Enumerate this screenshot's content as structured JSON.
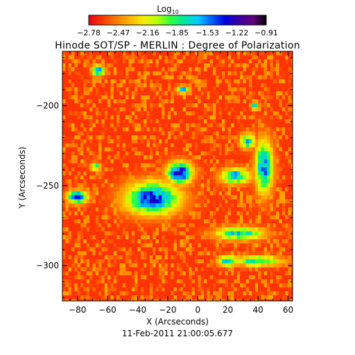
{
  "chart_data": {
    "type": "heatmap",
    "title": "Hinode SOT/SP - MERLIN : Degree of Polarization",
    "timestamp": "11-Feb-2011 21:00:05.677",
    "xlabel": "X (Arcseconds)",
    "ylabel": "Y (Arcseconds)",
    "xlim": [
      -90,
      63
    ],
    "ylim": [
      -322,
      -166
    ],
    "x_ticks": [
      -80,
      -60,
      -40,
      -20,
      0,
      20,
      40,
      60
    ],
    "x_tick_labels": [
      "−80",
      "−60",
      "−40",
      "−20",
      "0",
      "20",
      "40",
      "60"
    ],
    "y_ticks": [
      -200,
      -250,
      -300
    ],
    "y_tick_labels": [
      "−200",
      "−250",
      "−300"
    ],
    "colorbar": {
      "title_base": "Log",
      "title_sub": "10",
      "range": [
        -2.78,
        -0.91
      ],
      "tick_values": [
        -2.78,
        -2.47,
        -2.16,
        -1.85,
        -1.53,
        -1.22,
        -0.91
      ],
      "tick_labels": [
        "−2.78",
        "−2.47",
        "−2.16",
        "−1.85",
        "−1.53",
        "−1.22",
        "−0.91"
      ],
      "colors": [
        "#e8001c",
        "#ff3a00",
        "#ff7a00",
        "#ffb400",
        "#f4ee00",
        "#b8ff00",
        "#30ff40",
        "#00e6a0",
        "#00c8ff",
        "#0060ff",
        "#0000e0",
        "#3c00a0",
        "#600080",
        "#000000"
      ]
    },
    "background_value": -2.65,
    "regions": [
      {
        "x": -30,
        "y": -258,
        "rx": 22,
        "ry": 12,
        "value": -1.35
      },
      {
        "x": -12,
        "y": -242,
        "rx": 10,
        "ry": 8,
        "value": -1.2
      },
      {
        "x": -80,
        "y": -257,
        "rx": 8,
        "ry": 5,
        "value": -1.35
      },
      {
        "x": 44,
        "y": -238,
        "rx": 7,
        "ry": 20,
        "value": -1.5
      },
      {
        "x": 25,
        "y": -244,
        "rx": 12,
        "ry": 6,
        "value": -1.6
      },
      {
        "x": 28,
        "y": -280,
        "rx": 20,
        "ry": 5,
        "value": -1.7
      },
      {
        "x": 40,
        "y": -297,
        "rx": 20,
        "ry": 4,
        "value": -1.8
      },
      {
        "x": 20,
        "y": -297,
        "rx": 8,
        "ry": 4,
        "value": -1.6
      },
      {
        "x": -66,
        "y": -178,
        "rx": 5,
        "ry": 4,
        "value": -1.45
      },
      {
        "x": -10,
        "y": -190,
        "rx": 5,
        "ry": 3,
        "value": -1.7
      },
      {
        "x": 38,
        "y": -200,
        "rx": 3,
        "ry": 3,
        "value": -1.6
      },
      {
        "x": -68,
        "y": -238,
        "rx": 4,
        "ry": 3,
        "value": -1.7
      },
      {
        "x": 33,
        "y": -222,
        "rx": 6,
        "ry": 6,
        "value": -1.7
      }
    ]
  }
}
